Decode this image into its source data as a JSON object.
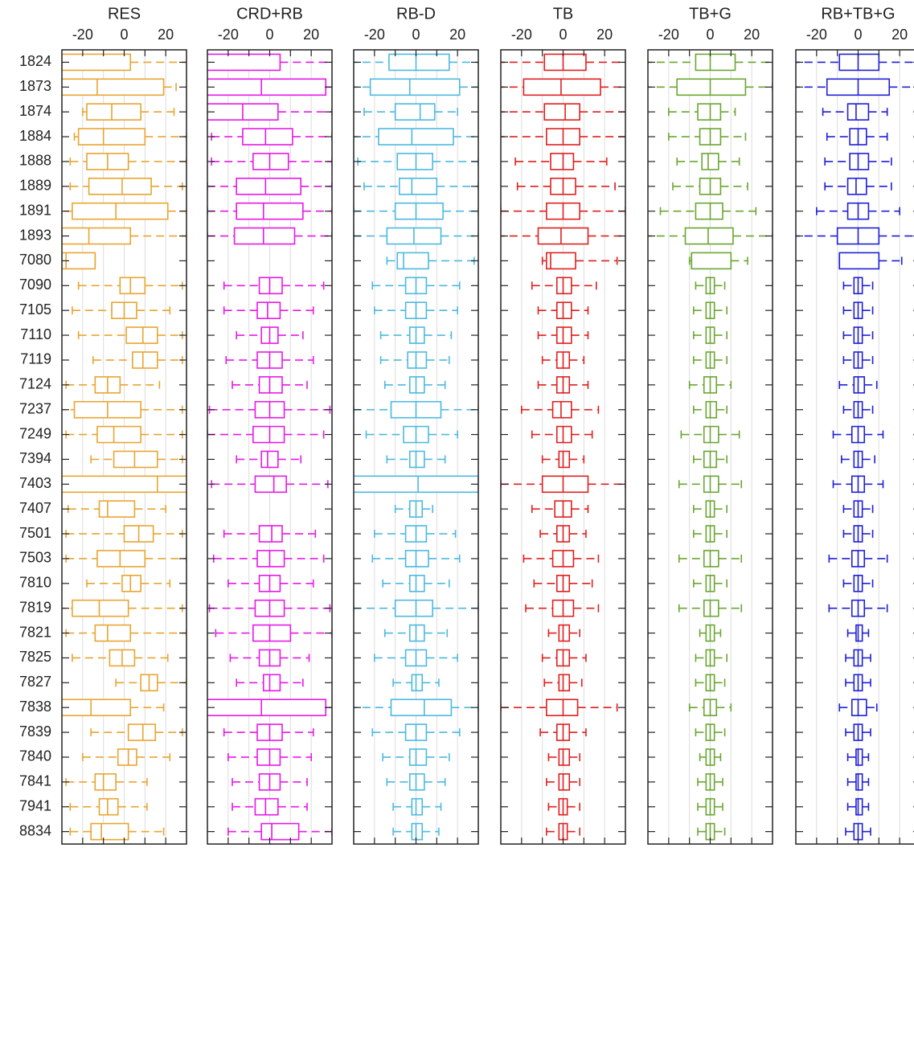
{
  "chart_data": {
    "type": "box",
    "categories": [
      "1824",
      "1873",
      "1874",
      "1884",
      "1888",
      "1889",
      "1891",
      "1893",
      "7080",
      "7090",
      "7105",
      "7110",
      "7119",
      "7124",
      "7237",
      "7249",
      "7394",
      "7403",
      "7407",
      "7501",
      "7503",
      "7810",
      "7819",
      "7821",
      "7825",
      "7827",
      "7838",
      "7839",
      "7840",
      "7841",
      "7941",
      "8834"
    ],
    "xlim": [
      -30,
      30
    ],
    "xticks": [
      -20,
      0,
      20
    ],
    "minor_xticks": [
      -10,
      10
    ],
    "grid": true,
    "series": [
      {
        "name": "RES",
        "color": "#e8a531",
        "whislo": [
          -40,
          -40,
          -20,
          -24,
          -26,
          -26,
          -35,
          -40,
          -40,
          -22,
          -25,
          -22,
          -15,
          -28,
          -32,
          -28,
          -16,
          -40,
          -27,
          -28,
          -28,
          -18,
          -32,
          -28,
          -25,
          -4,
          -40,
          -16,
          -20,
          -28,
          -26,
          -26
        ],
        "q1": [
          -35,
          -35,
          -18,
          -22,
          -18,
          -17,
          -25,
          -30,
          -30,
          -2,
          -6,
          1,
          4,
          -14,
          -24,
          -13,
          -5,
          -35,
          -12,
          0,
          -13,
          -1,
          -25,
          -14,
          -7,
          8,
          -35,
          2,
          -3,
          -14,
          -12,
          -16
        ],
        "median": [
          -30,
          -13,
          -6,
          -10,
          -8,
          -1,
          -4,
          -17,
          -28,
          3,
          0,
          9,
          9,
          -8,
          -8,
          -5,
          5,
          16,
          -8,
          7,
          -2,
          3,
          -12,
          -8,
          -1,
          12,
          -16,
          9,
          2,
          -10,
          -8,
          -11
        ],
        "q3": [
          3,
          19,
          8,
          10,
          2,
          13,
          21,
          3,
          -14,
          10,
          6,
          16,
          16,
          -2,
          8,
          8,
          16,
          35,
          5,
          14,
          10,
          8,
          2,
          3,
          5,
          16,
          3,
          15,
          6,
          -4,
          -3,
          2
        ],
        "whishi": [
          35,
          25,
          24,
          30,
          30,
          28,
          30,
          30,
          -14,
          28,
          22,
          28,
          28,
          17,
          28,
          28,
          28,
          40,
          20,
          28,
          30,
          22,
          28,
          30,
          21,
          30,
          19,
          28,
          22,
          11,
          11,
          19
        ]
      },
      {
        "name": "CRD+RB",
        "color": "#e619e6",
        "whislo": [
          -40,
          -40,
          -40,
          -28,
          -28,
          -30,
          -30,
          -30,
          null,
          -22,
          -22,
          -16,
          -21,
          -18,
          -29,
          -30,
          -16,
          -28,
          null,
          -22,
          -27,
          -20,
          -29,
          -26,
          -19,
          -16,
          -40,
          -22,
          -20,
          -18,
          -18,
          -20
        ],
        "q1": [
          -35,
          -35,
          -35,
          -13,
          -8,
          -16,
          -16,
          -17,
          null,
          -5,
          -6,
          -4,
          -6,
          -5,
          -7,
          -8,
          -4,
          -7,
          null,
          -5,
          -6,
          -5,
          -7,
          -8,
          -5,
          -3,
          -35,
          -6,
          -6,
          -5,
          -7,
          -4
        ],
        "median": [
          -32,
          -4,
          -13,
          -2,
          0,
          -2,
          -3,
          -3,
          null,
          0,
          -1,
          0,
          0,
          0,
          0,
          0,
          -1,
          2,
          null,
          1,
          0,
          0,
          0,
          0,
          0,
          0,
          -4,
          0,
          0,
          0,
          -2,
          1
        ],
        "q3": [
          5,
          27,
          4,
          11,
          9,
          15,
          16,
          12,
          null,
          6,
          5,
          4,
          6,
          6,
          7,
          7,
          4,
          8,
          null,
          6,
          7,
          5,
          7,
          10,
          5,
          5,
          27,
          6,
          5,
          5,
          4,
          14
        ],
        "whishi": [
          35,
          32,
          30,
          30,
          30,
          30,
          30,
          30,
          null,
          26,
          21,
          16,
          21,
          18,
          29,
          26,
          15,
          28,
          null,
          22,
          26,
          21,
          29,
          30,
          19,
          16,
          32,
          21,
          20,
          18,
          18,
          30
        ]
      },
      {
        "name": "RB-D",
        "color": "#4cb9e0",
        "whislo": [
          -32,
          -32,
          -25,
          -32,
          -28,
          -25,
          -30,
          -30,
          -14,
          -21,
          -20,
          -17,
          -17,
          -15,
          -30,
          -24,
          -14,
          -40,
          -10,
          -20,
          -21,
          -16,
          -30,
          -15,
          -20,
          -11,
          -32,
          -21,
          -16,
          -14,
          -11,
          -11
        ],
        "q1": [
          -13,
          -22,
          -10,
          -18,
          -9,
          -8,
          -10,
          -14,
          -9,
          -5,
          -5,
          -3,
          -4,
          -3,
          -12,
          -6,
          -3,
          -35,
          -3,
          -5,
          -5,
          -3,
          -10,
          -3,
          -5,
          -2,
          -12,
          -5,
          -3,
          -3,
          -2,
          -2
        ],
        "median": [
          0,
          -3,
          2,
          -2,
          0,
          -2,
          0,
          -1,
          -6,
          0,
          0,
          0,
          0,
          0,
          0,
          0,
          0,
          1,
          0,
          0,
          0,
          0,
          0,
          0,
          0,
          0,
          4,
          0,
          0,
          0,
          0,
          0
        ],
        "q3": [
          16,
          21,
          9,
          18,
          8,
          10,
          13,
          12,
          6,
          5,
          5,
          4,
          5,
          4,
          12,
          6,
          4,
          30,
          3,
          5,
          6,
          4,
          8,
          4,
          5,
          3,
          17,
          5,
          5,
          4,
          3,
          3
        ],
        "whishi": [
          32,
          32,
          20,
          32,
          30,
          30,
          30,
          30,
          28,
          21,
          20,
          17,
          16,
          14,
          30,
          20,
          14,
          40,
          8,
          19,
          21,
          16,
          30,
          15,
          20,
          11,
          30,
          21,
          16,
          14,
          12,
          11
        ]
      },
      {
        "name": "TB",
        "color": "#e01f1f",
        "whislo": [
          -32,
          -32,
          -32,
          -32,
          -23,
          -22,
          -30,
          -32,
          -10,
          -15,
          -12,
          -12,
          -10,
          -12,
          -20,
          -15,
          -10,
          -30,
          -15,
          -11,
          -19,
          -14,
          -18,
          -7,
          -10,
          -9,
          -30,
          -11,
          -7,
          -8,
          -7,
          -8
        ],
        "q1": [
          -9,
          -19,
          -9,
          -8,
          -6,
          -6,
          -8,
          -12,
          -8,
          -3,
          -3,
          -3,
          -3,
          -3,
          -5,
          -3,
          -2,
          -10,
          -4,
          -3,
          -5,
          -3,
          -5,
          -2,
          -3,
          -2,
          -8,
          -3,
          -2,
          -2,
          -2,
          -2
        ],
        "median": [
          0,
          -1,
          1,
          0,
          0,
          0,
          0,
          -1,
          -6,
          0,
          0,
          0,
          0,
          0,
          -1,
          0,
          0,
          0,
          0,
          0,
          0,
          0,
          0,
          0,
          0,
          0,
          0,
          0,
          0,
          0,
          0,
          0
        ],
        "q3": [
          11,
          18,
          8,
          8,
          5,
          6,
          8,
          12,
          6,
          4,
          4,
          4,
          3,
          3,
          4,
          4,
          3,
          12,
          4,
          3,
          5,
          3,
          5,
          3,
          3,
          3,
          7,
          3,
          3,
          3,
          2,
          2
        ],
        "whishi": [
          32,
          32,
          32,
          32,
          21,
          25,
          30,
          32,
          26,
          16,
          12,
          12,
          10,
          12,
          17,
          14,
          10,
          30,
          12,
          11,
          17,
          14,
          17,
          8,
          11,
          9,
          26,
          11,
          8,
          8,
          8,
          8
        ]
      },
      {
        "name": "TB+G",
        "color": "#6aa631",
        "whislo": [
          -32,
          -32,
          -20,
          -20,
          -16,
          -18,
          -24,
          -32,
          -10,
          -7,
          -8,
          -8,
          -8,
          -10,
          -8,
          -14,
          -8,
          -15,
          -8,
          -8,
          -15,
          -8,
          -15,
          -5,
          -7,
          -7,
          -10,
          -7,
          -5,
          -6,
          -6,
          -6
        ],
        "q1": [
          -7,
          -16,
          -6,
          -5,
          -4,
          -5,
          -7,
          -12,
          -9,
          -2,
          -2,
          -2,
          -2,
          -3,
          -2,
          -3,
          -3,
          -3,
          -2,
          -2,
          -3,
          -2,
          -3,
          -2,
          -2,
          -2,
          -3,
          -2,
          -2,
          -2,
          -2,
          -2
        ],
        "median": [
          0,
          0,
          0,
          0,
          -1,
          0,
          0,
          -1,
          -9,
          0,
          0,
          0,
          0,
          0,
          0,
          0,
          0,
          0,
          0,
          0,
          0,
          0,
          0,
          0,
          0,
          0,
          0,
          0,
          0,
          0,
          0,
          0
        ],
        "q3": [
          12,
          17,
          5,
          5,
          4,
          5,
          6,
          11,
          10,
          2,
          2,
          2,
          2,
          3,
          3,
          4,
          3,
          4,
          2,
          2,
          4,
          2,
          4,
          2,
          2,
          2,
          3,
          2,
          2,
          2,
          2,
          2
        ],
        "whishi": [
          32,
          30,
          12,
          17,
          14,
          18,
          22,
          30,
          18,
          7,
          8,
          8,
          8,
          10,
          8,
          14,
          8,
          15,
          8,
          8,
          15,
          8,
          15,
          5,
          8,
          7,
          10,
          7,
          5,
          6,
          6,
          7
        ]
      },
      {
        "name": "RB+TB+G",
        "color": "#1f1fd6",
        "whislo": [
          -32,
          -32,
          -17,
          -15,
          -16,
          -16,
          -20,
          -32,
          -9,
          -7,
          -7,
          -7,
          -7,
          -9,
          -7,
          -12,
          -8,
          -12,
          -7,
          -7,
          -14,
          -7,
          -14,
          -5,
          -6,
          -6,
          -9,
          -6,
          -5,
          -5,
          -5,
          -6
        ],
        "q1": [
          -9,
          -15,
          -5,
          -4,
          -4,
          -5,
          -5,
          -10,
          -9,
          -2,
          -2,
          -2,
          -2,
          -2,
          -2,
          -3,
          -2,
          -3,
          -2,
          -2,
          -3,
          -2,
          -3,
          -1,
          -2,
          -2,
          -3,
          -2,
          -1,
          -1,
          -1,
          -2
        ],
        "median": [
          0,
          0,
          -1,
          0,
          0,
          -1,
          0,
          0,
          -9,
          0,
          0,
          0,
          0,
          0,
          0,
          0,
          0,
          0,
          0,
          0,
          0,
          0,
          0,
          0,
          0,
          0,
          0,
          0,
          0,
          0,
          0,
          0
        ],
        "q3": [
          10,
          15,
          5,
          4,
          5,
          4,
          5,
          10,
          10,
          2,
          2,
          2,
          2,
          3,
          2,
          3,
          2,
          3,
          2,
          2,
          3,
          2,
          3,
          2,
          2,
          2,
          4,
          2,
          2,
          2,
          2,
          2
        ],
        "whishi": [
          32,
          32,
          14,
          14,
          16,
          16,
          20,
          30,
          21,
          7,
          7,
          7,
          7,
          9,
          7,
          12,
          8,
          12,
          7,
          7,
          14,
          7,
          14,
          5,
          6,
          6,
          9,
          6,
          5,
          5,
          5,
          6
        ]
      }
    ]
  }
}
